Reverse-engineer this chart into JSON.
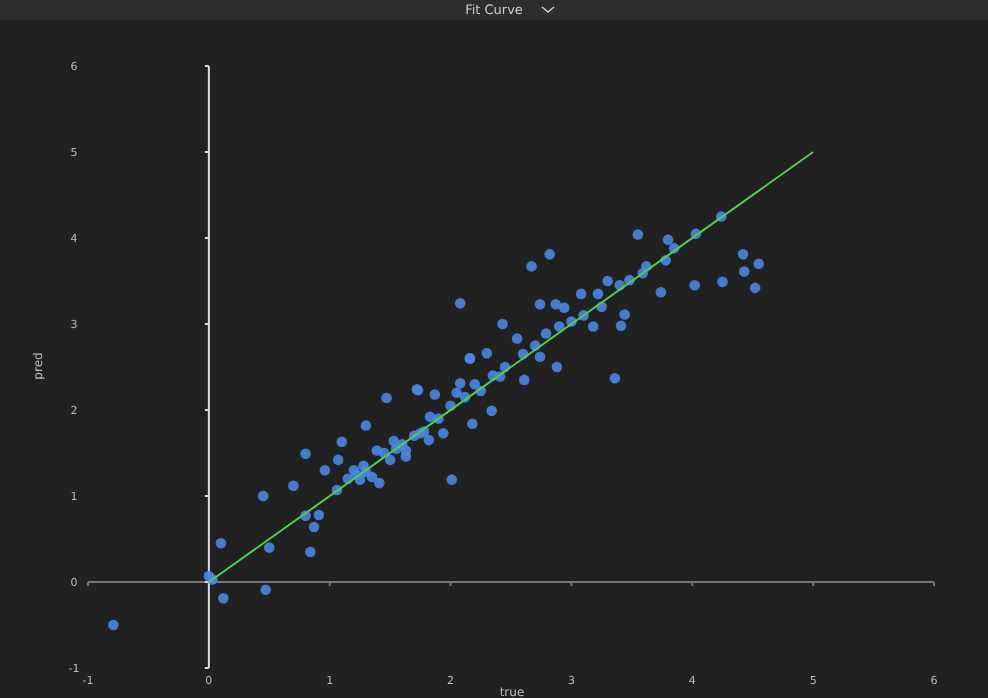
{
  "chart_data": {
    "type": "scatter",
    "title": "Fit Curve",
    "xlabel": "true",
    "ylabel": "pred",
    "xlim": [
      -1,
      6
    ],
    "ylim": [
      -1,
      6
    ],
    "xticks": [
      -1,
      0,
      1,
      2,
      3,
      4,
      5,
      6
    ],
    "yticks": [
      -1,
      0,
      1,
      2,
      3,
      4,
      5,
      6
    ],
    "grid": false,
    "marker": "circle",
    "series": [
      {
        "color": "#4a86e0",
        "x": [
          -0.79,
          0,
          0.12,
          0.1,
          0.47,
          0.5,
          0.45,
          0.7,
          0.8,
          0.84,
          0.87,
          0.91,
          0.8,
          0.96,
          1.06,
          1.1,
          1.07,
          1.3,
          1.25,
          1.2,
          1.39,
          1.41,
          1.47,
          1.53,
          1.63,
          1.63,
          1.73,
          1.75,
          1.82,
          1.87,
          1.94,
          2.01,
          2.08,
          2.16,
          2.18,
          2.34,
          2.43,
          2.55,
          1.83,
          2.08,
          2.3,
          2.41,
          2.67,
          2.82,
          2.74,
          2.87,
          2.94,
          3.08,
          3.22,
          3.3,
          3.44,
          3.41,
          3.36,
          3.18,
          3.0,
          2.88,
          2.61,
          3.55,
          3.48,
          3.62,
          3.74,
          3.8,
          3.85,
          3.78,
          4.03,
          4.24,
          4.02,
          4.25,
          4.42,
          4.43,
          4.55,
          4.52,
          3.59,
          1.72,
          2.16,
          2.74,
          2.79,
          2.9,
          1.15,
          1.22,
          1.3,
          1.35,
          1.28,
          1.45,
          1.5,
          1.55,
          1.6,
          1.7,
          1.78,
          1.9,
          2.0,
          2.05,
          2.12,
          2.2,
          2.25,
          2.35,
          2.45,
          2.6,
          2.7,
          3.1,
          3.25,
          3.4,
          0.03
        ],
        "values": [
          -0.5,
          0.07,
          -0.19,
          0.45,
          -0.09,
          0.4,
          1.0,
          1.12,
          1.49,
          0.35,
          0.64,
          0.78,
          0.77,
          1.3,
          1.07,
          1.63,
          1.42,
          1.82,
          1.19,
          1.3,
          1.53,
          1.15,
          2.14,
          1.64,
          1.46,
          1.53,
          2.23,
          1.73,
          1.65,
          2.18,
          1.73,
          1.19,
          3.24,
          2.6,
          1.84,
          1.99,
          3.0,
          2.83,
          1.92,
          2.31,
          2.66,
          2.39,
          3.67,
          3.81,
          3.23,
          3.23,
          3.19,
          3.35,
          3.35,
          3.5,
          3.11,
          2.98,
          2.37,
          2.97,
          3.03,
          2.5,
          2.35,
          4.04,
          3.51,
          3.67,
          3.37,
          3.98,
          3.88,
          3.74,
          4.05,
          4.25,
          3.45,
          3.49,
          3.81,
          3.61,
          3.7,
          3.42,
          3.59,
          2.24,
          2.6,
          2.62,
          2.89,
          2.97,
          1.2,
          1.25,
          1.28,
          1.22,
          1.35,
          1.5,
          1.42,
          1.55,
          1.6,
          1.7,
          1.75,
          1.9,
          2.05,
          2.2,
          2.15,
          2.3,
          2.22,
          2.4,
          2.5,
          2.65,
          2.75,
          3.1,
          3.2,
          3.45,
          0.03
        ]
      },
      {
        "type": "line",
        "color": "#4fd14f",
        "x": [
          0,
          5
        ],
        "values": [
          0,
          5
        ],
        "marker": "none"
      }
    ]
  }
}
